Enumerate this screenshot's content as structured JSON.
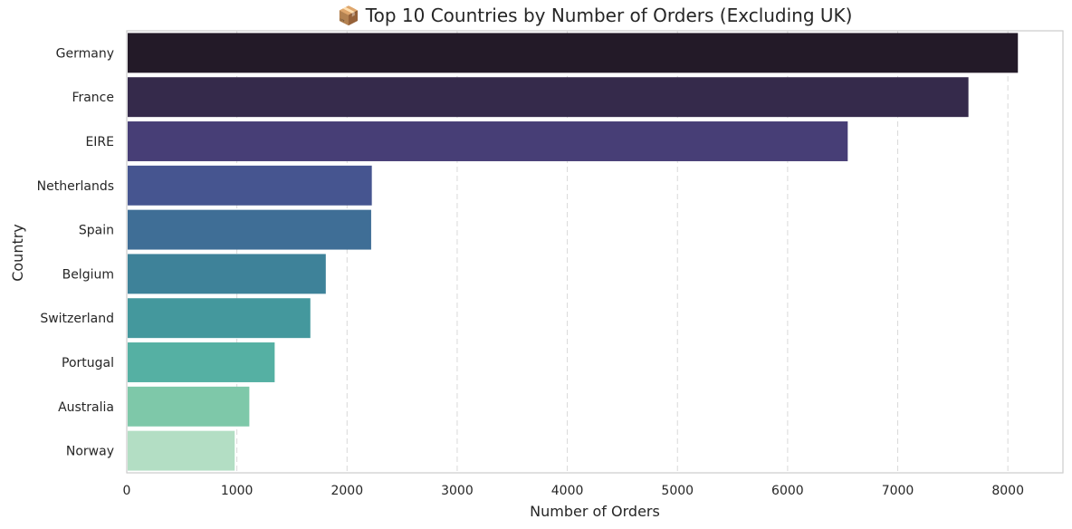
{
  "chart_data": {
    "type": "bar",
    "orientation": "horizontal",
    "title": "📦 Top 10 Countries by Number of Orders (Excluding UK)",
    "xlabel": "Number of Orders",
    "ylabel": "Country",
    "categories": [
      "Germany",
      "France",
      "EIRE",
      "Netherlands",
      "Spain",
      "Belgium",
      "Switzerland",
      "Portugal",
      "Australia",
      "Norway"
    ],
    "values": [
      8091,
      7642,
      6546,
      2225,
      2219,
      1807,
      1667,
      1343,
      1113,
      980
    ],
    "xlim": [
      0,
      8500
    ],
    "xticks": [
      0,
      1000,
      2000,
      3000,
      4000,
      5000,
      6000,
      7000,
      8000
    ],
    "grid": "vertical dashed",
    "colors": [
      "#231a28",
      "#352a4b",
      "#473e76",
      "#465590",
      "#3f6e96",
      "#3e8299",
      "#44989d",
      "#55b0a3",
      "#7ec8a9",
      "#b3dec4"
    ]
  }
}
